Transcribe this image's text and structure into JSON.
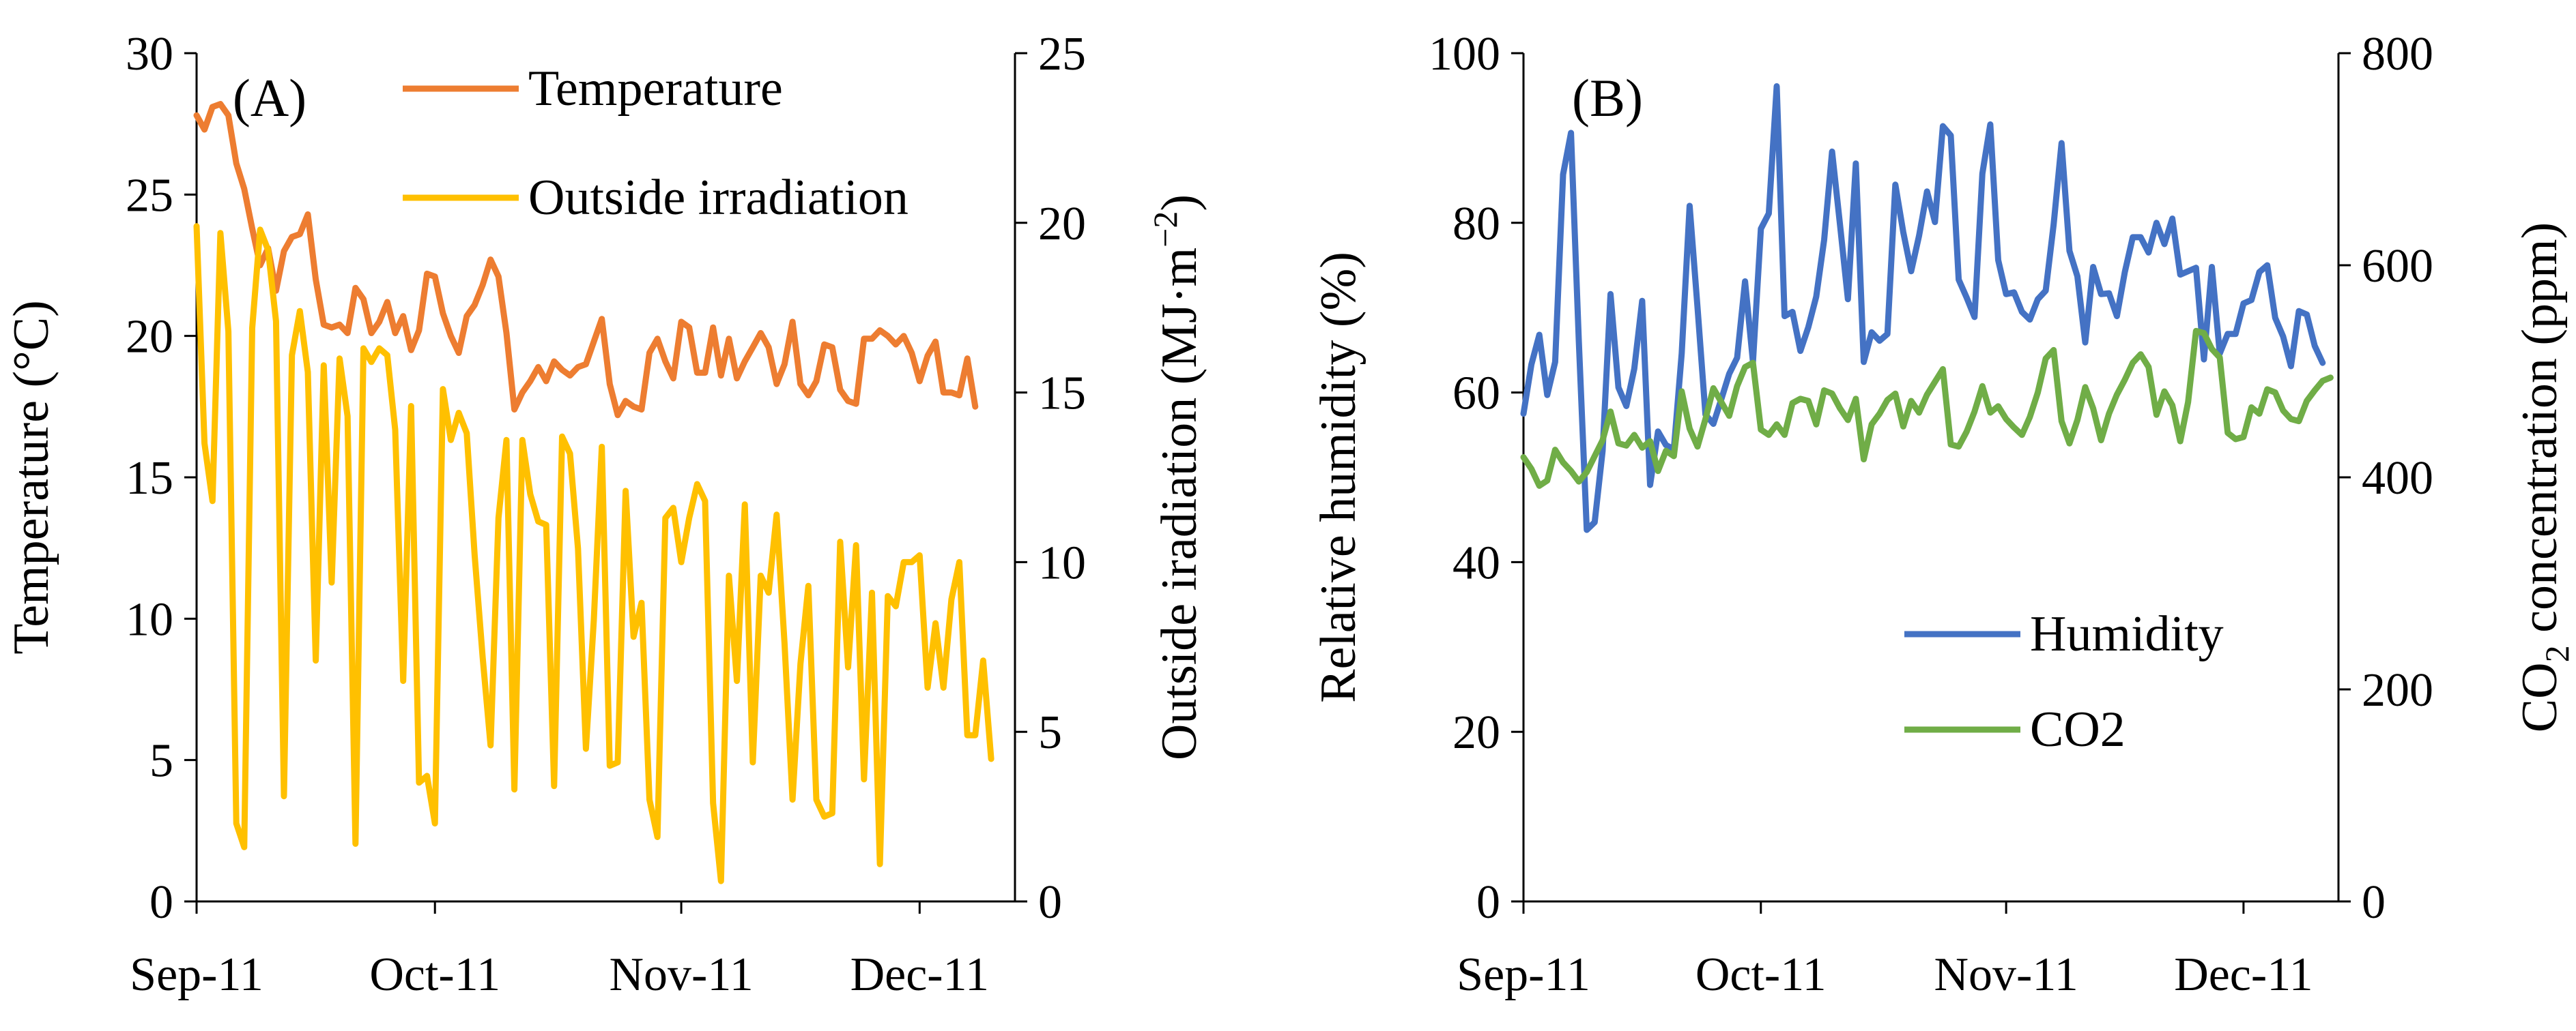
{
  "charts": [
    {
      "panel_label": "(A)",
      "type": "line",
      "x_tick_labels": [
        "Sep-11",
        "Oct-11",
        "Nov-11",
        "Dec-11"
      ],
      "x_range": [
        "2011-09-01",
        "2011-12-13"
      ],
      "left_axis": {
        "label": "Temperature (°C)",
        "range": [
          0,
          30
        ],
        "ticks": [
          0,
          5,
          10,
          15,
          20,
          25,
          30
        ]
      },
      "right_axis": {
        "label_text": "Outside iradiation (MJ·m",
        "label_sup": "−2",
        "label_close": ")",
        "range": [
          0,
          25
        ],
        "ticks": [
          0,
          5,
          10,
          15,
          20,
          25
        ]
      },
      "legend_position": "top-right",
      "grid": false,
      "series": [
        {
          "name": "Temperature",
          "axis": "left",
          "color": "#ED7D31",
          "start_date": "2011-09-01",
          "step_days": 1,
          "values": [
            27.8,
            27.3,
            28.1,
            28.2,
            27.8,
            26.1,
            25.2,
            23.8,
            22.5,
            23.1,
            21.6,
            23.0,
            23.5,
            23.6,
            24.3,
            22.0,
            20.4,
            20.3,
            20.4,
            20.1,
            21.7,
            21.3,
            20.1,
            20.5,
            21.2,
            20.1,
            20.7,
            19.5,
            20.2,
            22.2,
            22.1,
            20.8,
            20.0,
            19.4,
            20.7,
            21.1,
            21.8,
            22.7,
            22.1,
            20.1,
            17.4,
            18.0,
            18.4,
            18.9,
            18.4,
            19.1,
            18.8,
            18.6,
            18.9,
            19.0,
            19.8,
            20.6,
            18.3,
            17.2,
            17.7,
            17.5,
            17.4,
            19.4,
            19.9,
            19.1,
            18.5,
            20.5,
            20.3,
            18.7,
            18.7,
            20.3,
            18.6,
            19.9,
            18.5,
            19.1,
            19.6,
            20.1,
            19.6,
            18.3,
            19.0,
            20.5,
            18.3,
            17.9,
            18.4,
            19.7,
            19.6,
            18.1,
            17.7,
            17.6,
            19.9,
            19.9,
            20.2,
            20.0,
            19.7,
            20.0,
            19.4,
            18.4,
            19.3,
            19.8,
            18.0,
            18.0,
            17.9,
            19.2,
            17.5
          ]
        },
        {
          "name": "Outside irradiation",
          "axis": "right",
          "color": "#FFC000",
          "start_date": "2011-09-01",
          "step_days": 1,
          "values": [
            19.9,
            13.5,
            11.8,
            19.7,
            16.8,
            2.3,
            1.6,
            16.9,
            19.8,
            19.2,
            17.1,
            3.1,
            16.1,
            17.4,
            15.6,
            7.1,
            15.8,
            9.4,
            16.0,
            14.3,
            1.7,
            16.3,
            15.9,
            16.3,
            16.1,
            13.9,
            6.5,
            14.6,
            3.5,
            3.7,
            2.3,
            15.1,
            13.6,
            14.4,
            13.8,
            10.2,
            7.2,
            4.6,
            11.3,
            13.6,
            3.3,
            13.6,
            12.0,
            11.2,
            11.1,
            3.4,
            13.7,
            13.2,
            10.4,
            4.5,
            8.3,
            13.4,
            4.0,
            4.1,
            12.1,
            7.8,
            8.8,
            3.0,
            1.9,
            11.3,
            11.6,
            10.0,
            11.3,
            12.3,
            11.8,
            2.9,
            0.6,
            9.6,
            6.5,
            11.7,
            4.1,
            9.6,
            9.1,
            11.4,
            7.6,
            3.0,
            7.0,
            9.3,
            3.0,
            2.5,
            2.6,
            10.6,
            6.9,
            10.5,
            3.6,
            9.1,
            1.1,
            9.0,
            8.7,
            10.0,
            10.0,
            10.2,
            6.3,
            8.2,
            6.3,
            8.9,
            10.0,
            4.9,
            4.9,
            7.1,
            4.2
          ]
        }
      ]
    },
    {
      "panel_label": "(B)",
      "type": "line",
      "x_tick_labels": [
        "Sep-11",
        "Oct-11",
        "Nov-11",
        "Dec-11"
      ],
      "x_range": [
        "2011-09-01",
        "2011-12-13"
      ],
      "left_axis": {
        "label": "Relative humidity (%)",
        "range": [
          0,
          100
        ],
        "ticks": [
          0,
          20,
          40,
          60,
          80,
          100
        ]
      },
      "right_axis": {
        "label_text": "CO",
        "label_sub": "2",
        "label_close": " concentration (ppm)",
        "range": [
          0,
          800
        ],
        "ticks": [
          0,
          200,
          400,
          600,
          800
        ]
      },
      "legend_position": "bottom-right",
      "grid": false,
      "series": [
        {
          "name": "Humidity",
          "axis": "left",
          "color": "#4472C4",
          "start_date": "2011-09-01",
          "step_days": 1,
          "values": [
            57.5,
            63.3,
            66.8,
            59.7,
            63.6,
            85.7,
            90.6,
            66.0,
            43.8,
            44.7,
            53.1,
            71.6,
            60.6,
            58.4,
            62.8,
            70.8,
            49.1,
            55.4,
            53.8,
            53.3,
            64.6,
            82.0,
            70.0,
            57.4,
            56.3,
            59.2,
            62.2,
            64.1,
            73.1,
            63.6,
            79.3,
            81.1,
            96.1,
            69.0,
            69.5,
            64.9,
            67.7,
            71.3,
            78.0,
            88.4,
            79.8,
            71.0,
            87.0,
            63.6,
            67.1,
            66.1,
            66.9,
            84.5,
            78.9,
            74.3,
            78.5,
            83.7,
            80.1,
            91.4,
            90.3,
            73.3,
            71.2,
            68.9,
            85.8,
            91.6,
            75.6,
            71.6,
            71.8,
            69.5,
            68.6,
            71.0,
            72.0,
            79.8,
            89.4,
            76.7,
            73.7,
            65.9,
            74.8,
            71.6,
            71.7,
            69.0,
            74.2,
            78.3,
            78.3,
            76.5,
            80.0,
            77.5,
            80.5,
            73.9,
            74.3,
            74.7,
            63.9,
            74.8,
            64.6,
            66.9,
            66.9,
            70.5,
            70.9,
            74.2,
            75.0,
            68.8,
            66.6,
            63.1,
            69.6,
            69.2,
            65.5,
            63.5
          ]
        },
        {
          "name": "CO2",
          "axis": "right",
          "color": "#70AD47",
          "start_date": "2011-09-01",
          "step_days": 1,
          "values": [
            419,
            408,
            392,
            397,
            426,
            414,
            406,
            396,
            405,
            420,
            435,
            462,
            432,
            430,
            440,
            428,
            434,
            406,
            425,
            420,
            481,
            446,
            429,
            455,
            484,
            471,
            458,
            486,
            504,
            508,
            445,
            440,
            450,
            440,
            470,
            474,
            472,
            450,
            482,
            479,
            465,
            454,
            474,
            417,
            450,
            460,
            473,
            479,
            448,
            472,
            461,
            478,
            490,
            502,
            431,
            429,
            443,
            462,
            486,
            461,
            467,
            455,
            447,
            440,
            457,
            480,
            512,
            520,
            453,
            432,
            454,
            485,
            465,
            435,
            460,
            478,
            492,
            508,
            516,
            504,
            459,
            481,
            468,
            434,
            471,
            538,
            536,
            521,
            513,
            442,
            436,
            438,
            466,
            460,
            483,
            480,
            463,
            455,
            453,
            472,
            482,
            491,
            494
          ]
        }
      ]
    }
  ]
}
